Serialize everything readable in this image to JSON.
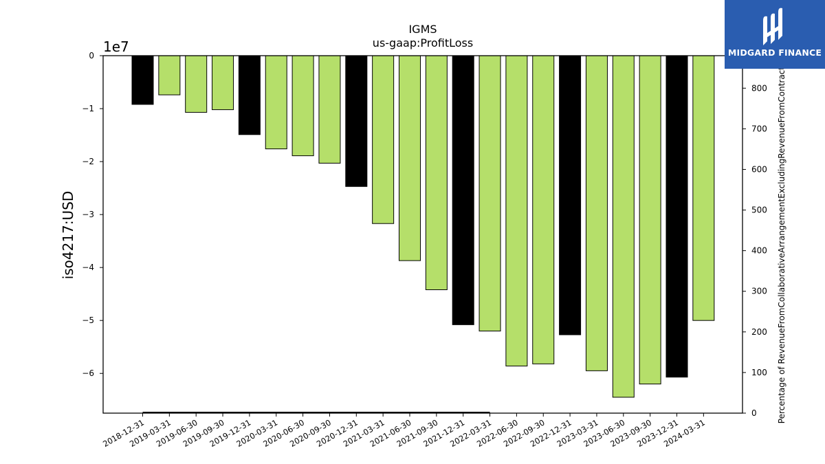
{
  "chart_data": {
    "type": "bar",
    "title": "IGMS",
    "subtitle": "us-gaap:ProfitLoss",
    "ylabel": "iso4217:USD",
    "y2label": "Percentage of RevenueFromCollaborativeArrangementExcludingRevenueFromContractWith",
    "offset_text": "1e7",
    "ylim": [
      -67500000,
      0
    ],
    "y2lim": [
      0,
      880
    ],
    "yticks": [
      0,
      -10000000,
      -20000000,
      -30000000,
      -40000000,
      -50000000,
      -60000000
    ],
    "ytick_labels": [
      "0",
      "−1",
      "−2",
      "−3",
      "−4",
      "−5",
      "−6"
    ],
    "y2ticks": [
      0,
      100,
      200,
      300,
      400,
      500,
      600,
      700,
      800
    ],
    "y2tick_labels": [
      "0",
      "100",
      "200",
      "300",
      "400",
      "500",
      "600",
      "700",
      "800"
    ],
    "categories": [
      "2018-12-31",
      "2019-03-31",
      "2019-06-30",
      "2019-09-30",
      "2019-12-31",
      "2020-03-31",
      "2020-06-30",
      "2020-09-30",
      "2020-12-31",
      "2021-03-31",
      "2021-06-30",
      "2021-09-30",
      "2021-12-31",
      "2022-03-31",
      "2022-06-30",
      "2022-09-30",
      "2022-12-31",
      "2023-03-31",
      "2023-06-30",
      "2023-09-30",
      "2023-12-31",
      "2024-03-31"
    ],
    "values": [
      -9200000,
      -7400000,
      -10700000,
      -10200000,
      -14900000,
      -17600000,
      -18900000,
      -20300000,
      -24700000,
      -31700000,
      -38700000,
      -44200000,
      -50800000,
      -52000000,
      -58600000,
      -58200000,
      -52700000,
      -59500000,
      -64500000,
      -62000000,
      -60700000,
      -50000000
    ],
    "bar_types": [
      "annual",
      "quarter",
      "quarter",
      "quarter",
      "annual",
      "quarter",
      "quarter",
      "quarter",
      "annual",
      "quarter",
      "quarter",
      "quarter",
      "annual",
      "quarter",
      "quarter",
      "quarter",
      "annual",
      "quarter",
      "quarter",
      "quarter",
      "annual",
      "quarter"
    ],
    "secondary_series": {
      "x_start": "2018-12-31",
      "x_end": "2022-03-31",
      "value": 0
    },
    "colors": {
      "annual": "#000000",
      "quarter": "#b5df6a",
      "edge": "#000000"
    },
    "grid": false,
    "legend": "none"
  },
  "logo": {
    "text": "MIDGARD FINANCE",
    "background": "#2a5db0"
  }
}
